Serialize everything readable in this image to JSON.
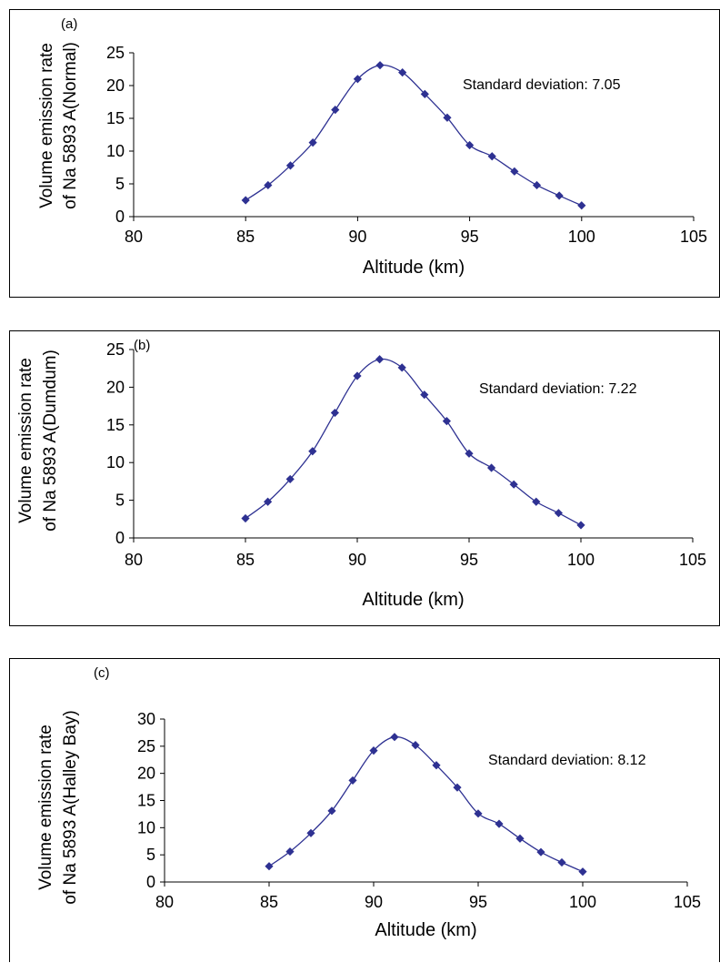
{
  "chart_data": [
    {
      "type": "line",
      "panel_label": "(a)",
      "ylabel_line1": "Volume emission rate",
      "ylabel_line2": "of Na 5893 A(Normal)",
      "xlabel": "Altitude (km)",
      "annotation": "Standard deviation: 7.05",
      "xlim": [
        80,
        105
      ],
      "ylim": [
        0,
        25
      ],
      "xticks": [
        "80",
        "85",
        "90",
        "95",
        "100",
        "105"
      ],
      "yticks": [
        "0",
        "5",
        "10",
        "15",
        "20",
        "25"
      ],
      "x": [
        85,
        86,
        87,
        88,
        89,
        90,
        91,
        92,
        93,
        94,
        95,
        96,
        97,
        98,
        99,
        100
      ],
      "y": [
        2.5,
        4.8,
        7.8,
        11.3,
        16.3,
        21.0,
        23.1,
        22.0,
        18.7,
        15.1,
        10.9,
        9.2,
        6.9,
        4.8,
        3.2,
        1.7
      ],
      "marker": "diamond",
      "color": "#2e3192"
    },
    {
      "type": "line",
      "panel_label": "(b)",
      "ylabel_line1": "Volume emission rate",
      "ylabel_line2": "of Na 5893 A(Dumdum)",
      "xlabel": "Altitude (km)",
      "annotation": "Standard deviation: 7.22",
      "xlim": [
        80,
        105
      ],
      "ylim": [
        0,
        25
      ],
      "xticks": [
        "80",
        "85",
        "90",
        "95",
        "100",
        "105"
      ],
      "yticks": [
        "0",
        "5",
        "10",
        "15",
        "20",
        "25"
      ],
      "x": [
        85,
        86,
        87,
        88,
        89,
        90,
        91,
        92,
        93,
        94,
        95,
        96,
        97,
        98,
        99,
        100
      ],
      "y": [
        2.6,
        4.8,
        7.8,
        11.5,
        16.6,
        21.5,
        23.7,
        22.6,
        19.0,
        15.5,
        11.2,
        9.3,
        7.1,
        4.8,
        3.3,
        1.7
      ],
      "marker": "diamond",
      "color": "#2e3192"
    },
    {
      "type": "line",
      "panel_label": "(c)",
      "ylabel_line1": "Volume emission rate",
      "ylabel_line2": "of Na 5893 A(Halley Bay)",
      "xlabel": "Altitude (km)",
      "annotation": "Standard deviation: 8.12",
      "xlim": [
        80,
        105
      ],
      "ylim": [
        0,
        30
      ],
      "xticks": [
        "80",
        "85",
        "90",
        "95",
        "100",
        "105"
      ],
      "yticks": [
        "0",
        "5",
        "10",
        "15",
        "20",
        "25",
        "30"
      ],
      "x": [
        85,
        86,
        87,
        88,
        89,
        90,
        91,
        92,
        93,
        94,
        95,
        96,
        97,
        98,
        99,
        100
      ],
      "y": [
        2.9,
        5.6,
        9.0,
        13.1,
        18.7,
        24.2,
        26.7,
        25.2,
        21.5,
        17.4,
        12.6,
        10.7,
        8.0,
        5.5,
        3.6,
        1.9
      ],
      "marker": "diamond",
      "color": "#2e3192"
    }
  ]
}
